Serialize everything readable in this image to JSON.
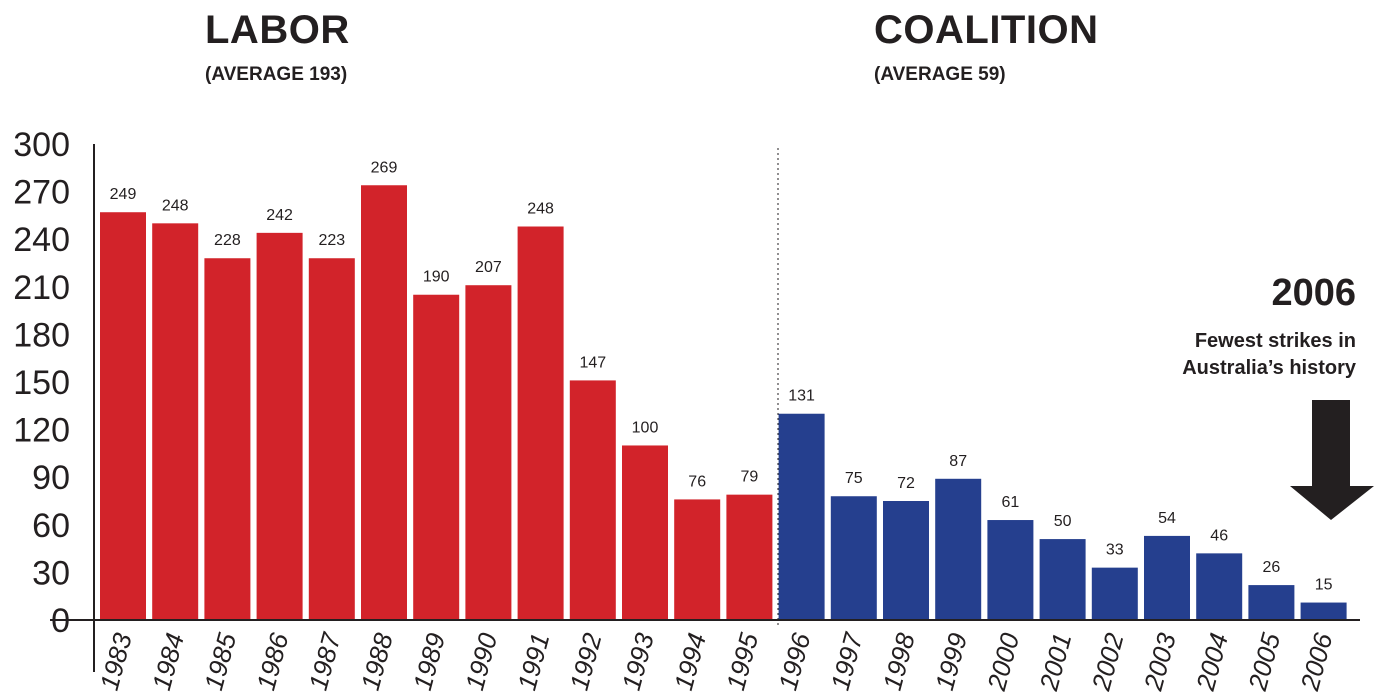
{
  "headings": {
    "labor_title": "LABOR",
    "labor_subtitle": "(AVERAGE 193)",
    "coalition_title": "COALITION",
    "coalition_subtitle": "(AVERAGE 59)"
  },
  "callout": {
    "year": "2006",
    "text_line1": "Fewest strikes in",
    "text_line2": "Australia’s history",
    "icon": "arrow-down-icon",
    "color": "#231f20"
  },
  "colors": {
    "labor": "#d2232a",
    "coalition": "#253f8e",
    "axis": "#231f20"
  },
  "chart_data": {
    "type": "bar",
    "categories": [
      "1983",
      "1984",
      "1985",
      "1986",
      "1987",
      "1988",
      "1989",
      "1990",
      "1991",
      "1992",
      "1993",
      "1994",
      "1995",
      "1996",
      "1997",
      "1998",
      "1999",
      "2000",
      "2001",
      "2002",
      "2003",
      "2004",
      "2005",
      "2006"
    ],
    "series": [
      {
        "name": "LABOR",
        "values": [
          249,
          248,
          228,
          242,
          223,
          269,
          190,
          207,
          248,
          147,
          100,
          76,
          79,
          null,
          null,
          null,
          null,
          null,
          null,
          null,
          null,
          null,
          null,
          null
        ]
      },
      {
        "name": "COALITION",
        "values": [
          null,
          null,
          null,
          null,
          null,
          null,
          null,
          null,
          null,
          null,
          null,
          null,
          null,
          131,
          75,
          72,
          87,
          61,
          50,
          33,
          54,
          46,
          26,
          15
        ]
      }
    ],
    "bar_heights": [
      257,
      250,
      228,
      244,
      228,
      274,
      205,
      211,
      248,
      151,
      110,
      76,
      79,
      130,
      78,
      75,
      89,
      63,
      51,
      33,
      53,
      42,
      22,
      11
    ],
    "data_labels": [
      "249",
      "248",
      "228",
      "242",
      "223",
      "269",
      "190",
      "207",
      "248",
      "147",
      "100",
      "76",
      "79",
      "131",
      "75",
      "72",
      "87",
      "61",
      "50",
      "33",
      "54",
      "46",
      "26",
      "15"
    ],
    "y_ticks": [
      "0",
      "30",
      "60",
      "90",
      "120",
      "150",
      "180",
      "210",
      "240",
      "270",
      "300"
    ],
    "ylim": [
      0,
      300
    ],
    "grid": false,
    "divider_after": "1995"
  }
}
